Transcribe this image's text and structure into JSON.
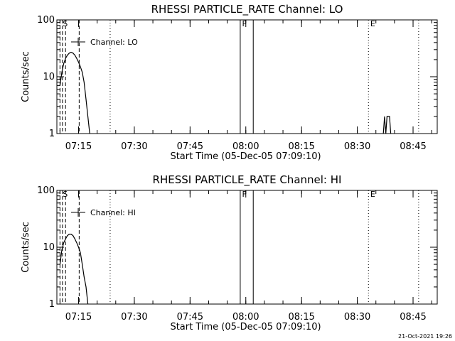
{
  "footer_date": "21-Oct-2021 19:26",
  "chart_data": [
    {
      "type": "line",
      "title": "RHESSI PARTICLE_RATE Channel: LO",
      "xlabel": "Start Time (05-Dec-05 07:09:10)",
      "ylabel": "Counts/sec",
      "yscale": "log",
      "ylim": [
        1,
        100
      ],
      "yticks": [
        "1",
        "10",
        "100"
      ],
      "xticks": [
        "07:15",
        "07:30",
        "07:45",
        "08:00",
        "08:15",
        "08:30",
        "08:45"
      ],
      "legend": {
        "label": "Channel: LO",
        "placement": "top-left"
      },
      "markers": [
        "S",
        "F",
        "E"
      ],
      "series": [
        {
          "x": [
            "07:10:00",
            "07:10:30",
            "07:11:00",
            "07:11:30",
            "07:12:00",
            "07:12:30",
            "07:13:00",
            "07:13:30",
            "07:14:00",
            "07:14:30",
            "07:15:00",
            "07:15:30",
            "07:16:00",
            "07:16:30",
            "07:17:00",
            "07:17:30",
            "07:18:00"
          ],
          "values": [
            7,
            12,
            17,
            21,
            24,
            26,
            27,
            26,
            24,
            21,
            18,
            15,
            12,
            8,
            4,
            2,
            1
          ]
        },
        {
          "x": [
            "08:37:00",
            "08:37:20",
            "08:37:40",
            "08:38:00",
            "08:38:20",
            "08:38:40",
            "08:39:00"
          ],
          "values": [
            1,
            2,
            1,
            2,
            2,
            2,
            1
          ]
        }
      ]
    },
    {
      "type": "line",
      "title": "RHESSI PARTICLE_RATE Channel: HI",
      "xlabel": "Start Time (05-Dec-05 07:09:10)",
      "ylabel": "Counts/sec",
      "yscale": "log",
      "ylim": [
        1,
        100
      ],
      "yticks": [
        "1",
        "10",
        "100"
      ],
      "xticks": [
        "07:15",
        "07:30",
        "07:45",
        "08:00",
        "08:15",
        "08:30",
        "08:45"
      ],
      "legend": {
        "label": "Channel: HI",
        "placement": "top-left"
      },
      "markers": [
        "S",
        "F",
        "E"
      ],
      "series": [
        {
          "x": [
            "07:10:00",
            "07:10:30",
            "07:11:00",
            "07:11:30",
            "07:12:00",
            "07:12:30",
            "07:13:00",
            "07:13:30",
            "07:14:00",
            "07:14:30",
            "07:15:00",
            "07:15:30",
            "07:16:00",
            "07:16:30",
            "07:17:00",
            "07:17:30"
          ],
          "values": [
            5,
            9,
            12,
            14,
            16,
            17,
            17,
            16,
            14,
            12,
            10,
            8,
            5,
            3,
            2,
            1
          ]
        }
      ]
    }
  ]
}
